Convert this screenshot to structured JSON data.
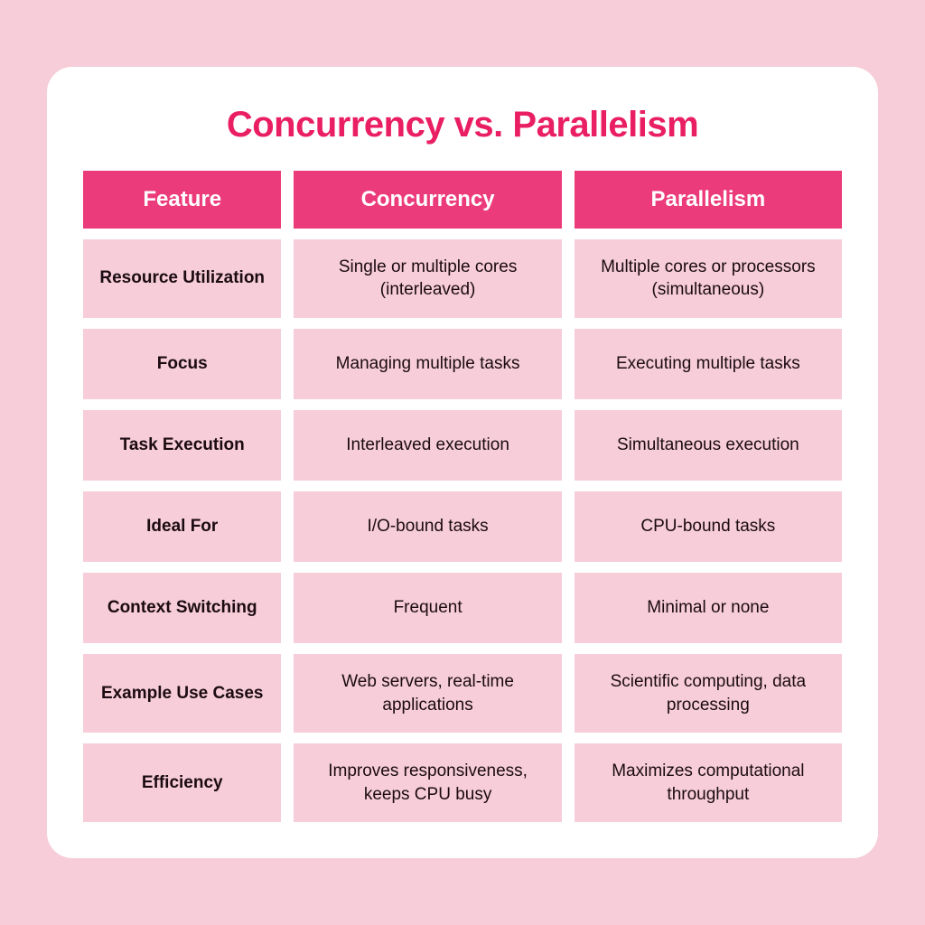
{
  "title": "Concurrency vs. Parallelism",
  "title_color": "#e91e63",
  "header_bg": "#ec3b7a",
  "header_fg": "#ffffff",
  "cell_bg": "#f6cdd8",
  "cell_fg": "#1c0b12",
  "card_bg": "#ffffff",
  "page_bg": "#f6cdd8",
  "columns": [
    "Feature",
    "Concurrency",
    "Parallelism"
  ],
  "rows": [
    {
      "feature": "Resource Utilization",
      "concurrency": "Single or multiple cores (interleaved)",
      "parallelism": "Multiple cores or processors (simultaneous)"
    },
    {
      "feature": "Focus",
      "concurrency": "Managing multiple tasks",
      "parallelism": "Executing multiple tasks"
    },
    {
      "feature": "Task Execution",
      "concurrency": "Interleaved execution",
      "parallelism": "Simultaneous execution"
    },
    {
      "feature": "Ideal For",
      "concurrency": "I/O-bound tasks",
      "parallelism": "CPU-bound tasks"
    },
    {
      "feature": "Context Switching",
      "concurrency": "Frequent",
      "parallelism": "Minimal or none"
    },
    {
      "feature": "Example Use Cases",
      "concurrency": "Web servers, real-time applications",
      "parallelism": "Scientific computing, data processing"
    },
    {
      "feature": "Efficiency",
      "concurrency": "Improves responsiveness, keeps CPU busy",
      "parallelism": "Maximizes computational throughput"
    }
  ]
}
